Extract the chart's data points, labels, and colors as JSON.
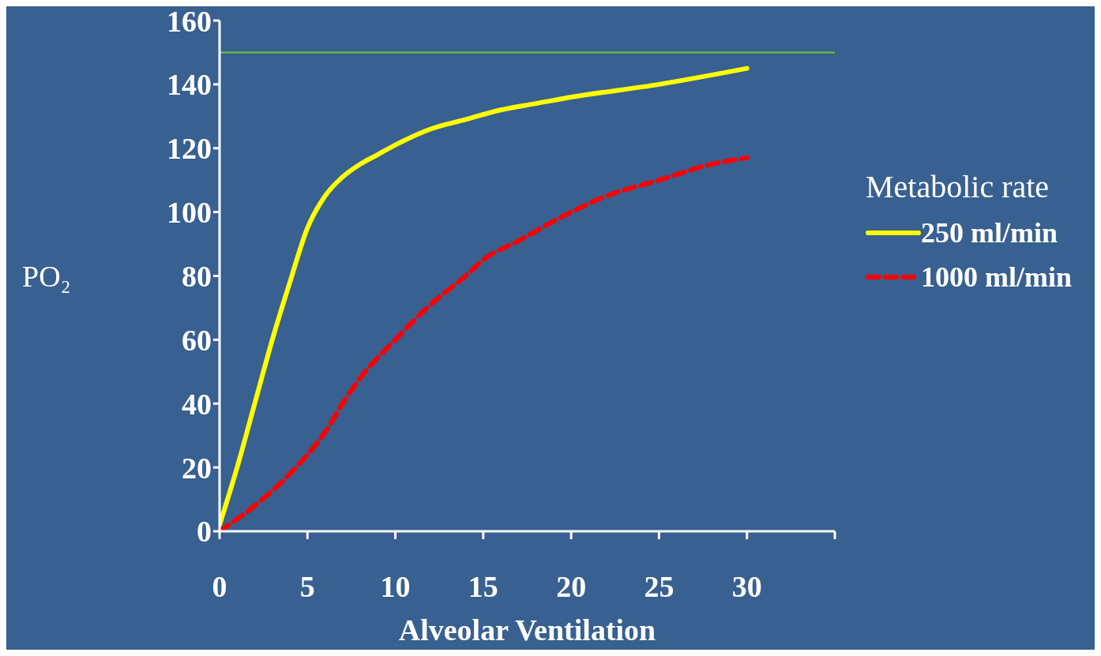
{
  "chart_data": {
    "type": "line",
    "xlabel": "Alveolar Ventilation",
    "ylabel": "PO₂",
    "legend_title": "Metabolic rate",
    "legend": "right",
    "marker": "none",
    "xlim": [
      0,
      35
    ],
    "xticks": [
      0,
      5,
      10,
      15,
      20,
      25,
      30,
      {
        "value": 35,
        "label": null
      }
    ],
    "ylim": [
      0,
      160
    ],
    "yticks": [
      0,
      20,
      40,
      60,
      80,
      100,
      120,
      140,
      160
    ],
    "ref_lines": [
      {
        "axis": "y",
        "value": 150,
        "color": "#66cc33"
      }
    ],
    "series": [
      {
        "name": "250 ml/min",
        "color": "#ffff00",
        "line_style": "solid",
        "x": [
          0,
          1,
          2,
          3,
          4,
          5,
          6,
          7,
          8,
          9,
          10,
          12,
          14,
          16,
          18,
          20,
          25,
          30
        ],
        "values": [
          2,
          20,
          40,
          60,
          78,
          95,
          105,
          111,
          115,
          118,
          121,
          126,
          129,
          132,
          134,
          136,
          140,
          145
        ]
      },
      {
        "name": "1000 ml/min",
        "color": "#ff0000",
        "line_style": "dashed",
        "x": [
          0,
          2,
          4,
          5,
          6,
          7,
          8,
          10,
          12,
          14,
          15,
          17,
          20,
          22,
          25,
          28,
          30
        ],
        "values": [
          0,
          8,
          18,
          24,
          31,
          40,
          48,
          60,
          71,
          80,
          85,
          91,
          100,
          105,
          110,
          115,
          117
        ]
      }
    ]
  }
}
